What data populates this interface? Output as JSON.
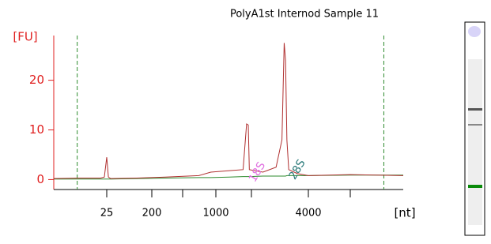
{
  "chart_data": {
    "type": "line",
    "title": "PolyA1st Internod Sample 11",
    "y_label": "[FU]",
    "x_label": "[nt]",
    "x": [
      4,
      10,
      20,
      23,
      25,
      27,
      30,
      100,
      300,
      700,
      900,
      1300,
      1700,
      1820,
      1880,
      1920,
      2300,
      2700,
      2900,
      2980,
      3030,
      3080,
      3150,
      3500,
      4000,
      6000,
      8000
    ],
    "series": [
      {
        "color": "#b03030",
        "values": [
          0.2,
          0.3,
          0.3,
          0.5,
          4.5,
          0.5,
          0.2,
          0.3,
          0.5,
          0.8,
          1.5,
          1.8,
          2.0,
          11.2,
          11.0,
          2.0,
          1.5,
          2.5,
          8.0,
          27.5,
          24.0,
          8.0,
          2.0,
          1.2,
          0.8,
          1.0,
          0.8
        ]
      },
      {
        "color": "#2e8b2e",
        "values": [
          0.1,
          0.1,
          0.1,
          0.1,
          0.1,
          0.1,
          0.1,
          0.2,
          0.3,
          0.4,
          0.4,
          0.5,
          0.6,
          0.6,
          0.6,
          0.6,
          0.7,
          0.7,
          0.7,
          0.7,
          0.7,
          0.8,
          0.8,
          0.8,
          0.8,
          0.9,
          0.9
        ]
      }
    ],
    "xlim": [
      4,
      8000
    ],
    "xticks": [
      25,
      200,
      1000,
      4000
    ],
    "xminor_ticks": [
      500,
      2000,
      6000
    ],
    "ylim": [
      -2,
      29
    ],
    "yticks": [
      0,
      10,
      20
    ],
    "markers": [
      9,
      7200
    ],
    "marker_color": "#2e8b2e",
    "annotations": [
      {
        "text": "18S",
        "x": 2150,
        "y": 1.5,
        "color": "#e070e0"
      },
      {
        "text": "28S",
        "x": 3500,
        "y": 2.0,
        "color": "#2a7a7a"
      }
    ]
  }
}
